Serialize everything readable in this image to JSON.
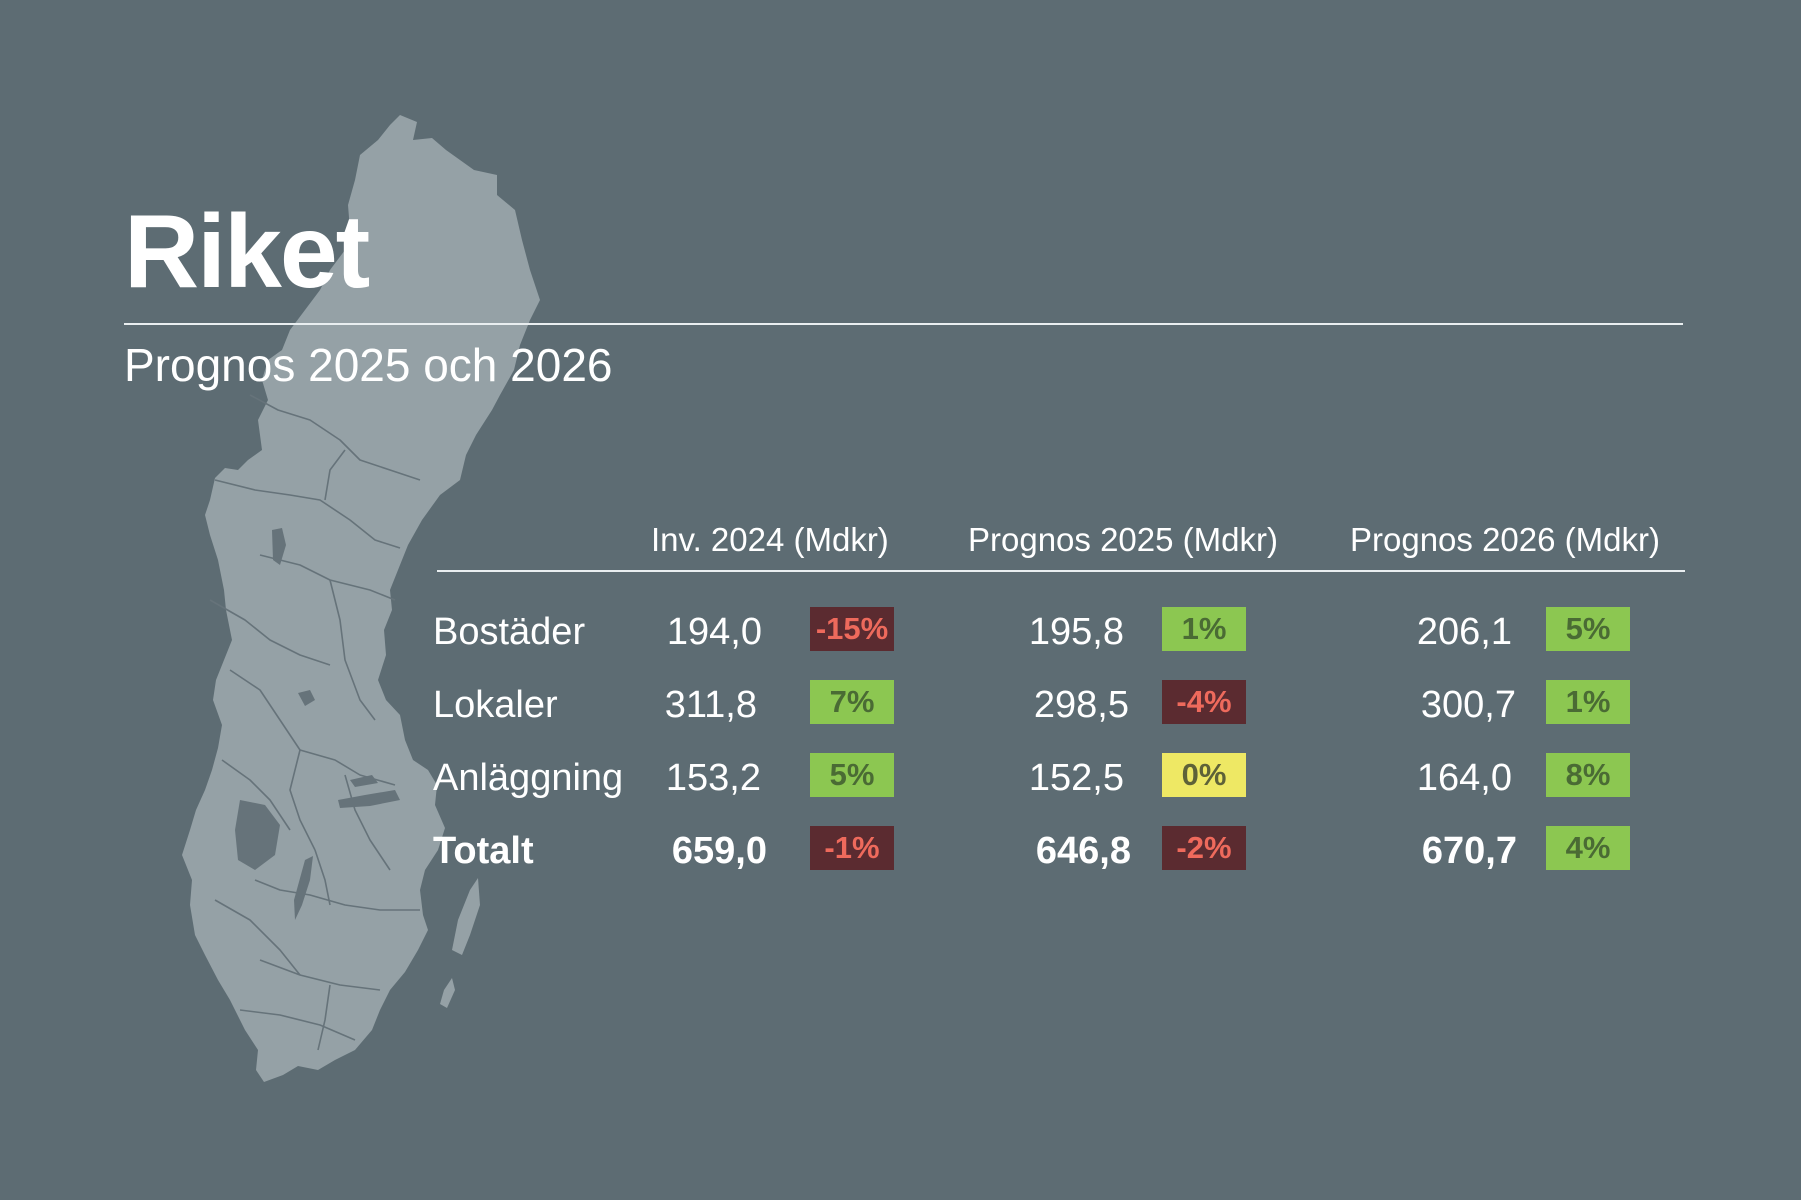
{
  "title": "Riket",
  "subtitle": "Prognos 2025 och 2026",
  "columns": [
    "Inv. 2024 (Mdkr)",
    "Prognos 2025 (Mdkr)",
    "Prognos 2026 (Mdkr)"
  ],
  "rows": [
    {
      "label": "Bostäder",
      "inv2024": "194,0",
      "inv2024_change": "-15%",
      "prog2025": "195,8",
      "prog2025_change": "1%",
      "prog2026": "206,1",
      "prog2026_change": "5%"
    },
    {
      "label": "Lokaler",
      "inv2024": "311,8",
      "inv2024_change": "7%",
      "prog2025": "298,5",
      "prog2025_change": "-4%",
      "prog2026": "300,7",
      "prog2026_change": "1%"
    },
    {
      "label": "Anläggning",
      "inv2024": "153,2",
      "inv2024_change": "5%",
      "prog2025": "152,5",
      "prog2025_change": "0%",
      "prog2026": "164,0",
      "prog2026_change": "8%"
    },
    {
      "label": "Totalt",
      "inv2024": "659,0",
      "inv2024_change": "-1%",
      "prog2025": "646,8",
      "prog2025_change": "-2%",
      "prog2026": "670,7",
      "prog2026_change": "4%"
    }
  ],
  "colors": {
    "background": "#5d6c73",
    "map_fill": "#95a1a6",
    "negative_bg": "#5b2b30",
    "negative_text": "#ee6a5c",
    "positive_bg": "#8cc751",
    "positive_text": "#4a6b34",
    "neutral_bg": "#eee864",
    "neutral_text": "#5e6238"
  },
  "map_icon": "sweden-map-icon"
}
